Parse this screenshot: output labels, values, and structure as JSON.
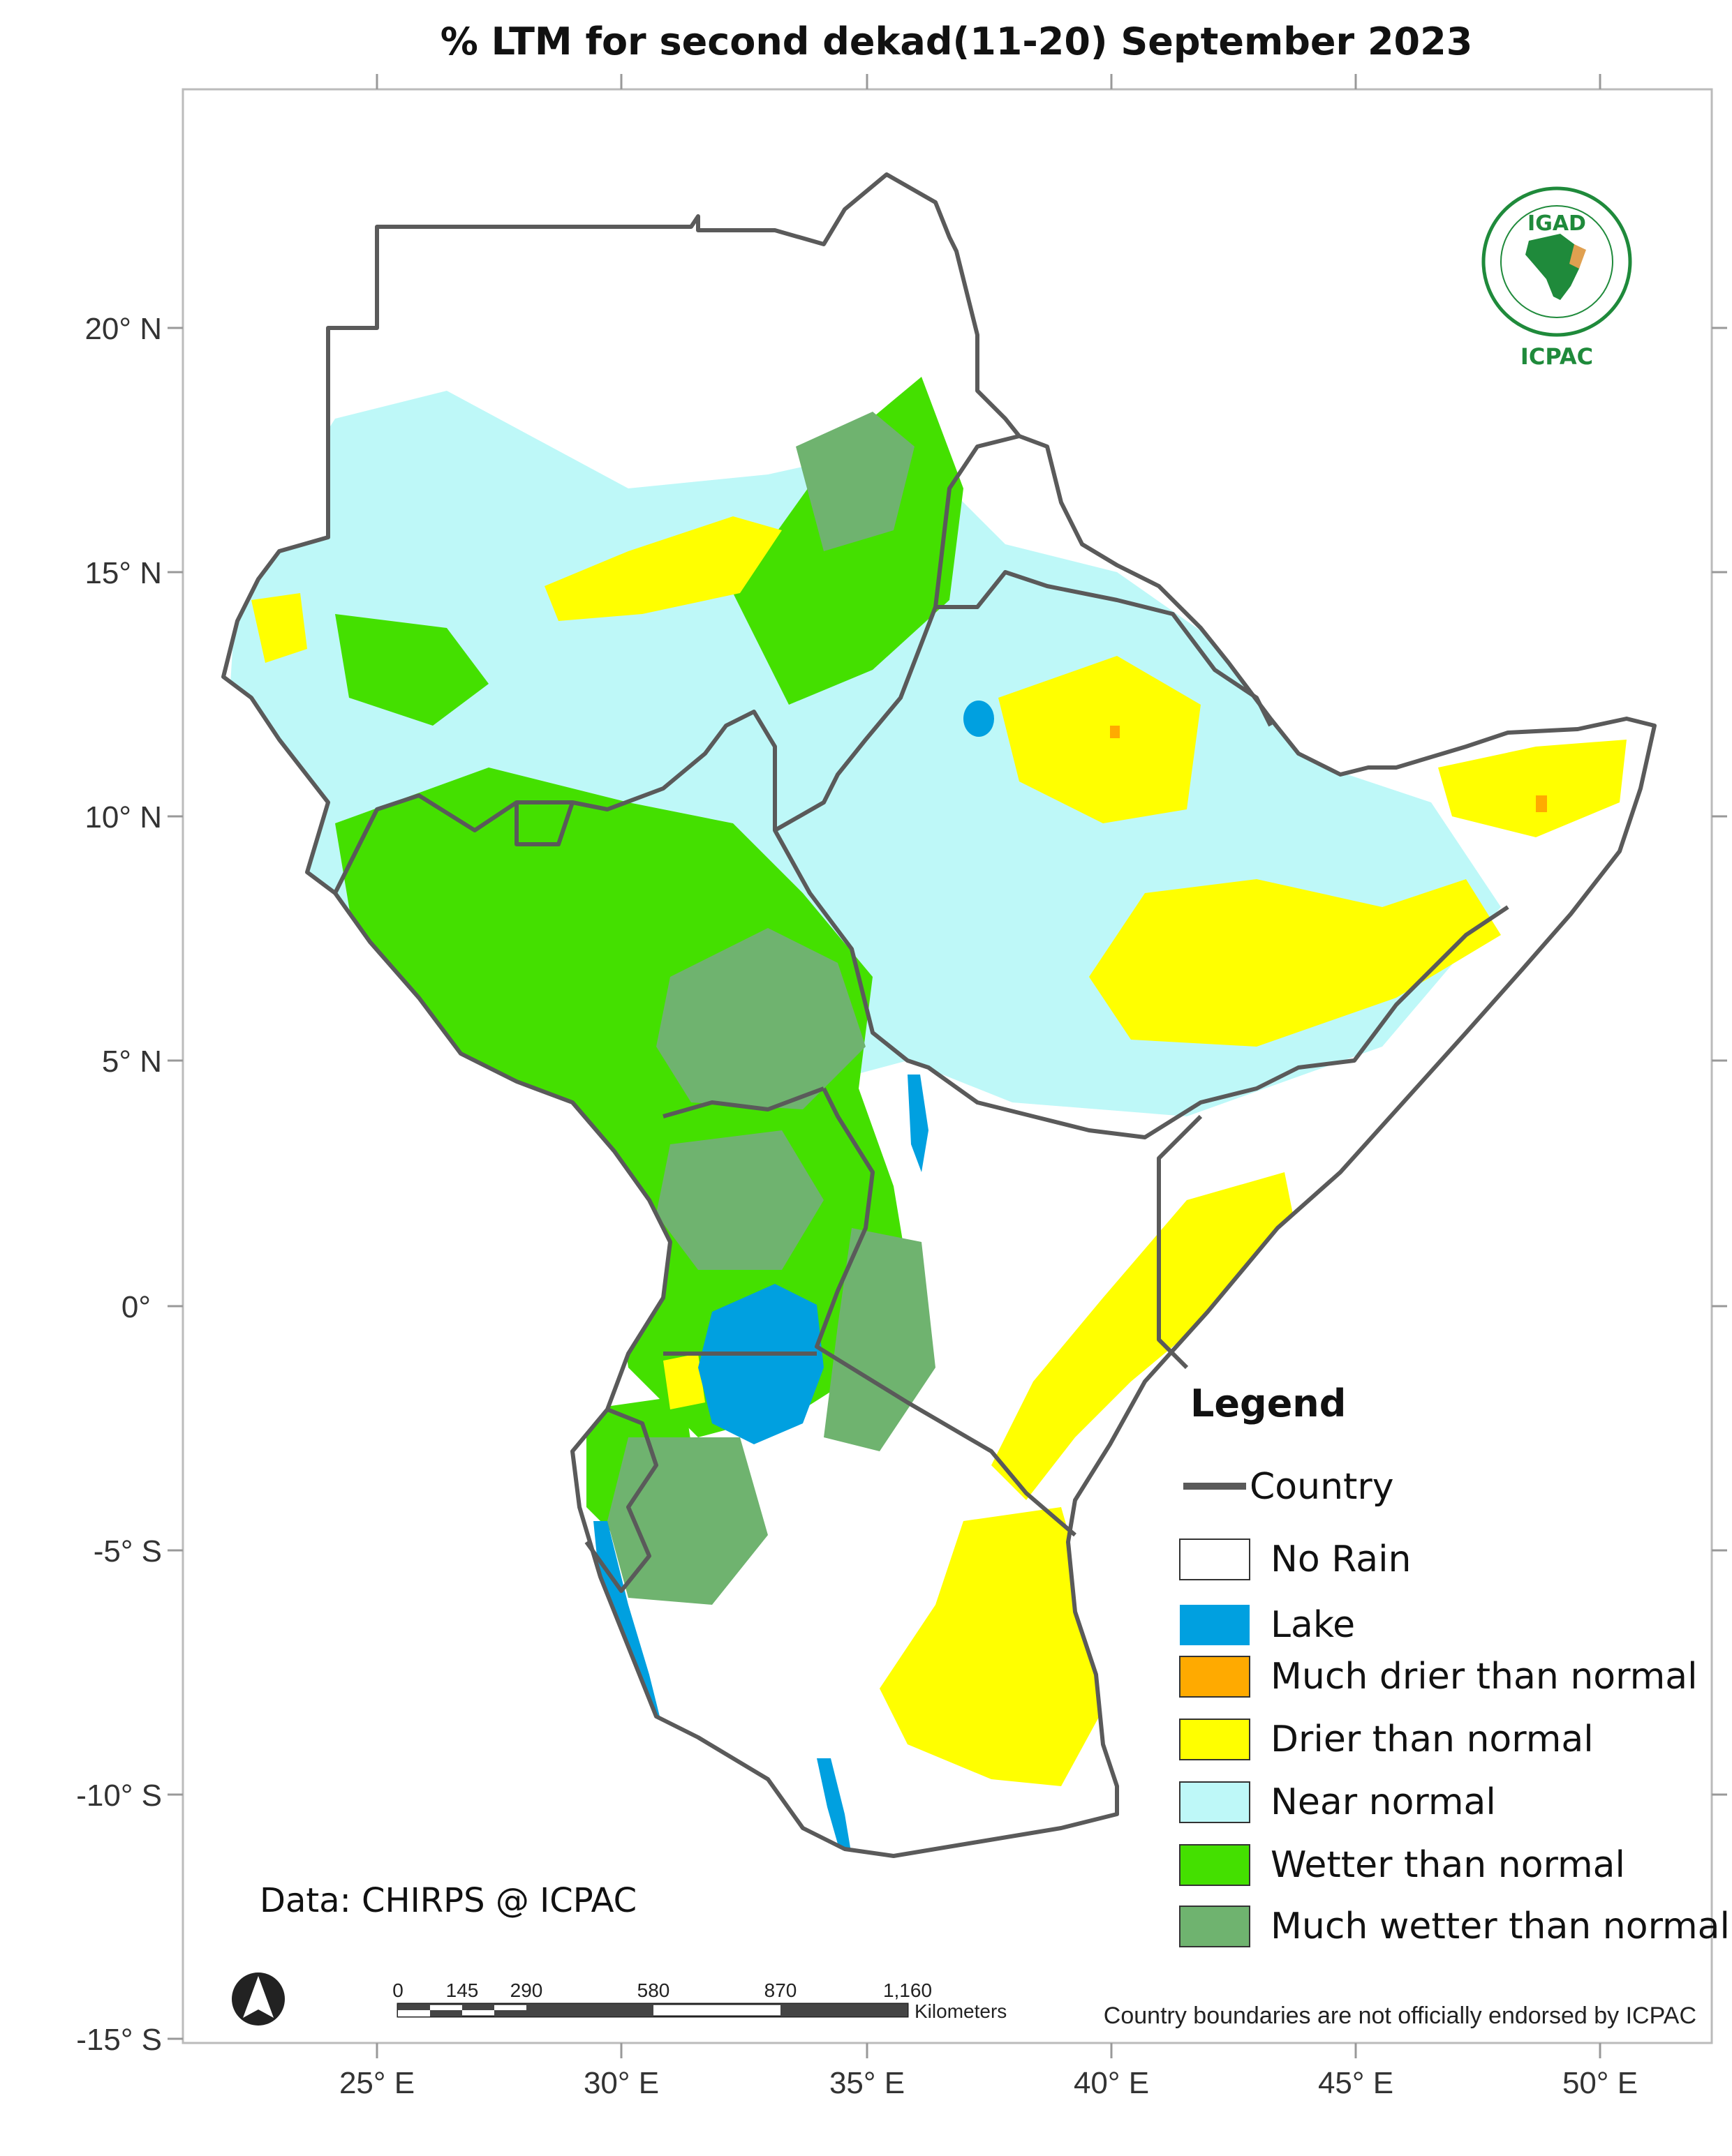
{
  "title": "% LTM   for  second dekad(11-20)  September  2023",
  "axes": {
    "y_labels": [
      "20° N",
      "15° N",
      "10° N",
      "5° N",
      "0°",
      "-5° S",
      "-10° S",
      "-15° S"
    ],
    "x_labels": [
      "25° E",
      "30° E",
      "35° E",
      "40° E",
      "45° E",
      "50° E"
    ]
  },
  "legend": {
    "title": "Legend",
    "country_label": "Country",
    "items": [
      {
        "label": "No Rain",
        "color": "#ffffff"
      },
      {
        "label": "Lake",
        "color": "#00a0e0"
      },
      {
        "label": "Much drier than normal",
        "color": "#ffaa00"
      },
      {
        "label": "Drier than normal",
        "color": "#ffff00"
      },
      {
        "label": "Near normal",
        "color": "#bef8f8"
      },
      {
        "label": "Wetter than normal",
        "color": "#44e000"
      },
      {
        "label": "Much wetter than normal",
        "color": "#6fb36f"
      }
    ]
  },
  "credit": "Data: CHIRPS @ ICPAC",
  "scale_bar": {
    "ticks": [
      "0",
      "145",
      "290",
      "580",
      "870",
      "1,160"
    ],
    "unit": "Kilometers"
  },
  "disclaimer": "Country boundaries are not officially endorsed by ICPAC",
  "logo": {
    "top": "IGAD",
    "bottom": "ICPAC"
  },
  "colors": {
    "border": "#5a5a5a",
    "frame": "#bbbbbb"
  }
}
